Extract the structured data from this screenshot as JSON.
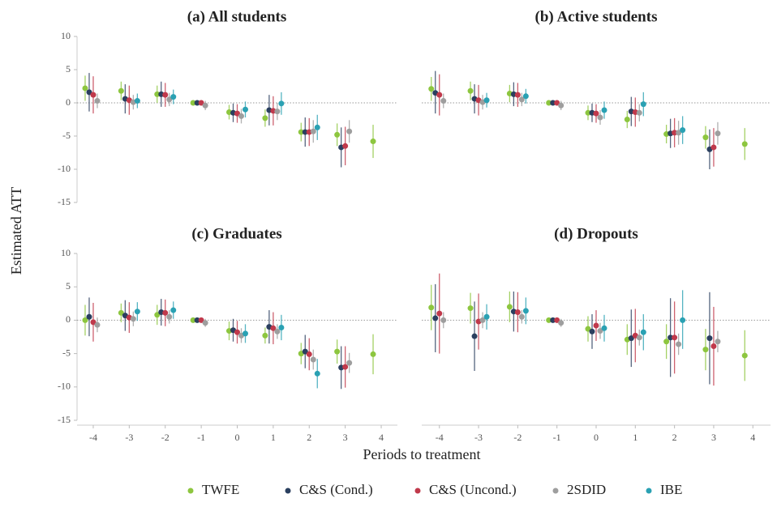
{
  "figure": {
    "y_label": "Estimated ATT",
    "x_label": "Periods to treatment"
  },
  "chart_data": [
    {
      "type": "scatter",
      "title": "(a) All students",
      "x": [
        -4,
        -3,
        -2,
        -1,
        0,
        1,
        2,
        3,
        4
      ],
      "xlim": [
        -4.45,
        4.45
      ],
      "ylim": [
        -15,
        10
      ],
      "yticks": [
        10,
        5,
        0,
        -5,
        -10,
        -15
      ],
      "series": [
        {
          "name": "TWFE",
          "color": "#8dc63f",
          "values": [
            2.2,
            1.8,
            1.3,
            0,
            -1.4,
            -2.3,
            -4.4,
            -4.8,
            -5.8
          ],
          "lower": [
            0.3,
            0.4,
            0,
            0,
            -2.5,
            -3.6,
            -5.8,
            -6.5,
            -8.3
          ],
          "upper": [
            4.1,
            3.2,
            2.6,
            0,
            -0.3,
            -1,
            -3,
            -3.1,
            -3.3
          ]
        },
        {
          "name": "C&S (Cond.)",
          "color": "#2a3f5f",
          "values": [
            1.6,
            0.6,
            1.3,
            0,
            -1.5,
            -1.1,
            -4.4,
            -6.7,
            null
          ],
          "lower": [
            -1.3,
            -1.6,
            -0.6,
            0,
            -2.9,
            -3.4,
            -6.6,
            -9.7,
            null
          ],
          "upper": [
            4.5,
            2.8,
            3.2,
            0,
            -0.1,
            1.2,
            -2.2,
            -3.7,
            null
          ]
        },
        {
          "name": "C&S (Uncond.)",
          "color": "#c0394b",
          "values": [
            1.2,
            0.4,
            1.2,
            0,
            -1.6,
            -1.2,
            -4.4,
            -6.5,
            null
          ],
          "lower": [
            -1.6,
            -1.8,
            -0.6,
            0,
            -3,
            -3.4,
            -6.5,
            -9.4,
            null
          ],
          "upper": [
            4,
            2.6,
            3,
            0,
            -0.2,
            1,
            -2.3,
            -3.6,
            null
          ]
        },
        {
          "name": "2SDID",
          "color": "#9e9e9e",
          "values": [
            0.3,
            0.1,
            0.5,
            -0.4,
            -2.0,
            -1.3,
            -4.3,
            -4.3,
            null
          ],
          "lower": [
            -0.8,
            -1,
            -0.5,
            -1.1,
            -3.1,
            -2.6,
            -6,
            -6,
            null
          ],
          "upper": [
            1.4,
            1.2,
            1.5,
            0.3,
            -0.9,
            0,
            -2.6,
            -2.6,
            null
          ]
        },
        {
          "name": "IBE",
          "color": "#2aa1b3",
          "values": [
            null,
            0.3,
            0.9,
            null,
            -1.0,
            -0.1,
            -3.7,
            null,
            null
          ],
          "lower": [
            null,
            -0.8,
            -0.2,
            null,
            -2.2,
            -1.8,
            -5.6,
            null,
            null
          ],
          "upper": [
            null,
            1.4,
            2,
            null,
            0.2,
            1.6,
            -1.8,
            null,
            null
          ]
        }
      ]
    },
    {
      "type": "scatter",
      "title": "(b) Active students",
      "x": [
        -4,
        -3,
        -2,
        -1,
        0,
        1,
        2,
        3,
        4
      ],
      "xlim": [
        -4.45,
        4.45
      ],
      "ylim": [
        -15,
        10
      ],
      "series": [
        {
          "name": "TWFE",
          "color": "#8dc63f",
          "values": [
            2.1,
            1.8,
            1.4,
            0,
            -1.5,
            -2.5,
            -4.7,
            -5.2,
            -6.2
          ],
          "lower": [
            0.3,
            0.4,
            0.1,
            0,
            -2.6,
            -3.8,
            -6.1,
            -6.9,
            -8.6
          ],
          "upper": [
            3.9,
            3.2,
            2.7,
            0,
            -0.4,
            -1.2,
            -3.3,
            -3.5,
            -3.8
          ]
        },
        {
          "name": "C&S (Cond.)",
          "color": "#2a3f5f",
          "values": [
            1.5,
            0.6,
            1.3,
            0,
            -1.5,
            -1.3,
            -4.6,
            -7.0,
            null
          ],
          "lower": [
            -1.6,
            -1.6,
            -0.5,
            0,
            -2.9,
            -3.5,
            -6.8,
            -10,
            null
          ],
          "upper": [
            4.8,
            2.8,
            3.1,
            0,
            -0.1,
            0.9,
            -2.4,
            -4,
            null
          ]
        },
        {
          "name": "C&S (Uncond.)",
          "color": "#c0394b",
          "values": [
            1.2,
            0.4,
            1.2,
            0,
            -1.6,
            -1.4,
            -4.5,
            -6.7,
            null
          ],
          "lower": [
            -1.9,
            -1.9,
            -0.6,
            0,
            -3,
            -3.6,
            -6.7,
            -9.6,
            null
          ],
          "upper": [
            4.3,
            2.7,
            3,
            0,
            -0.2,
            0.8,
            -2.3,
            -3.8,
            null
          ]
        },
        {
          "name": "2SDID",
          "color": "#9e9e9e",
          "values": [
            0.3,
            0.1,
            0.5,
            -0.4,
            -2.2,
            -1.5,
            -4.5,
            -4.6,
            null
          ],
          "lower": [
            -0.8,
            -1,
            -0.5,
            -1.1,
            -3.3,
            -2.8,
            -6.3,
            -6.3,
            null
          ],
          "upper": [
            1.4,
            1.2,
            1.5,
            0.3,
            -1.1,
            -0.2,
            -2.7,
            -2.9,
            null
          ]
        },
        {
          "name": "IBE",
          "color": "#2aa1b3",
          "values": [
            null,
            0.4,
            1.0,
            null,
            -1.1,
            -0.2,
            -4.1,
            null,
            null
          ],
          "lower": [
            null,
            -0.7,
            -0.1,
            null,
            -2.4,
            -2,
            -6.2,
            null,
            null
          ],
          "upper": [
            null,
            1.5,
            2.1,
            null,
            0.2,
            1.6,
            -2,
            null,
            null
          ]
        }
      ]
    },
    {
      "type": "scatter",
      "title": "(c) Graduates",
      "x": [
        -4,
        -3,
        -2,
        -1,
        0,
        1,
        2,
        3,
        4
      ],
      "xlim": [
        -4.45,
        4.45
      ],
      "xticks": [
        -4,
        -3,
        -2,
        -1,
        0,
        1,
        2,
        3,
        4
      ],
      "ylim": [
        -15,
        10
      ],
      "yticks": [
        10,
        5,
        0,
        -5,
        -10,
        -15
      ],
      "series": [
        {
          "name": "TWFE",
          "color": "#8dc63f",
          "values": [
            0,
            1.1,
            0.8,
            0,
            -1.6,
            -2.3,
            -5.0,
            -4.7,
            -5.1
          ],
          "lower": [
            -2.3,
            -0.3,
            -0.7,
            0,
            -3,
            -3.5,
            -6.6,
            -6.5,
            -8.1
          ],
          "upper": [
            2.3,
            2.5,
            2.3,
            0,
            -0.2,
            -1.1,
            -3.4,
            -2.9,
            -2.1
          ]
        },
        {
          "name": "C&S (Cond.)",
          "color": "#2a3f5f",
          "values": [
            0.5,
            0.7,
            1.2,
            0,
            -1.5,
            -1.0,
            -4.7,
            -7.1,
            null
          ],
          "lower": [
            -2.4,
            -1.6,
            -0.8,
            0,
            -3.2,
            -3.5,
            -7.2,
            -10.3,
            null
          ],
          "upper": [
            3.4,
            3,
            3.2,
            0,
            0.2,
            1.5,
            -2.2,
            -3.9,
            null
          ]
        },
        {
          "name": "C&S (Uncond.)",
          "color": "#c0394b",
          "values": [
            -0.3,
            0.4,
            1.1,
            0,
            -1.8,
            -1.2,
            -5.1,
            -7.0,
            null
          ],
          "lower": [
            -3.2,
            -1.9,
            -0.9,
            0,
            -3.5,
            -3.6,
            -7.5,
            -10.1,
            null
          ],
          "upper": [
            2.6,
            2.7,
            3.1,
            0,
            -0.1,
            1.2,
            -2.7,
            -3.9,
            null
          ]
        },
        {
          "name": "2SDID",
          "color": "#9e9e9e",
          "values": [
            -0.7,
            0.2,
            0.5,
            -0.4,
            -2.3,
            -1.7,
            -5.9,
            -6.4,
            null
          ],
          "lower": [
            -1.8,
            -0.9,
            -0.5,
            -1,
            -3.4,
            -2.8,
            -7.4,
            -7.9,
            null
          ],
          "upper": [
            0.4,
            1.3,
            1.5,
            0.2,
            -1.2,
            -0.6,
            -4.4,
            -4.9,
            null
          ]
        },
        {
          "name": "IBE",
          "color": "#2aa1b3",
          "values": [
            null,
            1.3,
            1.5,
            null,
            -2.0,
            -1.1,
            -8.0,
            null,
            null
          ],
          "lower": [
            null,
            -0.1,
            0.2,
            null,
            -3.4,
            -3,
            -10.2,
            null,
            null
          ],
          "upper": [
            null,
            2.7,
            2.8,
            null,
            -0.6,
            0.8,
            -5.8,
            null,
            null
          ]
        }
      ]
    },
    {
      "type": "scatter",
      "title": "(d) Dropouts",
      "x": [
        -4,
        -3,
        -2,
        -1,
        0,
        1,
        2,
        3,
        4
      ],
      "xlim": [
        -4.45,
        4.45
      ],
      "xticks": [
        -4,
        -3,
        -2,
        -1,
        0,
        1,
        2,
        3,
        4
      ],
      "ylim": [
        -15,
        10
      ],
      "series": [
        {
          "name": "TWFE",
          "color": "#8dc63f",
          "values": [
            1.9,
            1.8,
            2.0,
            0,
            -1.3,
            -2.9,
            -3.2,
            -4.4,
            -5.3
          ],
          "lower": [
            -1.5,
            -0.5,
            -0.3,
            0,
            -3.2,
            -5.2,
            -5.8,
            -7.5,
            -9.1
          ],
          "upper": [
            5.3,
            4.1,
            4.3,
            0,
            0.6,
            -0.6,
            -0.6,
            -1.3,
            -1.5
          ]
        },
        {
          "name": "C&S (Cond.)",
          "color": "#2a3f5f",
          "values": [
            0.3,
            -2.4,
            1.3,
            0,
            -1.7,
            -2.7,
            -2.6,
            -2.7,
            null
          ],
          "lower": [
            -4.8,
            -7.6,
            -1.7,
            0,
            -4.3,
            -7,
            -8.5,
            -9.6,
            null
          ],
          "upper": [
            5.4,
            2.8,
            4.3,
            0,
            0.9,
            1.6,
            3.3,
            4.2,
            null
          ]
        },
        {
          "name": "C&S (Uncond.)",
          "color": "#c0394b",
          "values": [
            1.0,
            -0.2,
            1.2,
            0,
            -0.8,
            -2.3,
            -2.6,
            -3.9,
            null
          ],
          "lower": [
            -5,
            -4.4,
            -1.8,
            0,
            -3.1,
            -6.3,
            -8,
            -9.8,
            null
          ],
          "upper": [
            7,
            4,
            4.2,
            0,
            1.5,
            1.7,
            2.8,
            2,
            null
          ]
        },
        {
          "name": "2SDID",
          "color": "#9e9e9e",
          "values": [
            0,
            0,
            0.5,
            -0.4,
            -1.6,
            -2.6,
            -3.6,
            -3.2,
            null
          ],
          "lower": [
            -1.2,
            -1.2,
            -0.5,
            -1,
            -2.8,
            -3.8,
            -5.2,
            -4.8,
            null
          ],
          "upper": [
            1.2,
            1.2,
            1.5,
            0.2,
            -0.4,
            -1.4,
            -2,
            -1.6,
            null
          ]
        },
        {
          "name": "IBE",
          "color": "#2aa1b3",
          "values": [
            null,
            0.5,
            1.4,
            null,
            -1.2,
            -1.8,
            0,
            null,
            null
          ],
          "lower": [
            null,
            -1.4,
            -0.6,
            null,
            -3.2,
            -4.5,
            -4.3,
            null,
            null
          ],
          "upper": [
            null,
            2.4,
            3.4,
            null,
            0.8,
            0.9,
            4.5,
            null,
            null
          ]
        }
      ]
    }
  ]
}
